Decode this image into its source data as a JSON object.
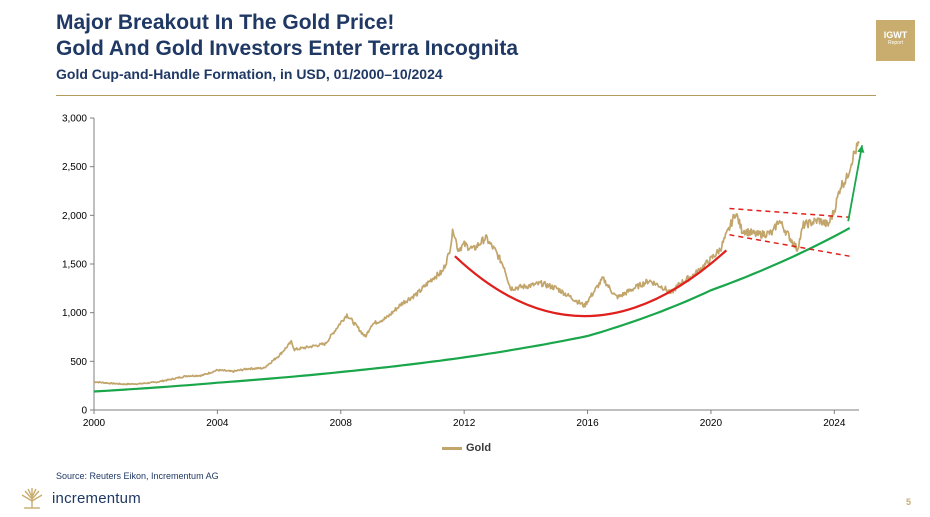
{
  "header": {
    "title_line1": "Major Breakout In The Gold Price!",
    "title_line2": "Gold And Gold Investors Enter Terra Incognita",
    "subtitle": "Gold Cup-and-Handle Formation, in USD, 01/2000–10/2024"
  },
  "badge": {
    "line1": "IGWT",
    "line2": "Report"
  },
  "footer": {
    "source": "Source: Reuters Eikon, Incrementum AG",
    "logo_text": "incrementum",
    "page_number": "5"
  },
  "colors": {
    "title": "#1f3864",
    "gold_series": "#c2a56b",
    "trend_line": "#1aa64b",
    "cup_arc": "#e0201c",
    "handle_channel": "#e0201c",
    "badge": "#c8ad6f"
  },
  "chart_data": {
    "type": "line",
    "xlim": [
      2000,
      2024.8
    ],
    "ylim": [
      0,
      3000
    ],
    "x_ticks": [
      "2000",
      "2004",
      "2008",
      "2012",
      "2016",
      "2020",
      "2024"
    ],
    "y_ticks": [
      "0",
      "500",
      "1,000",
      "1,500",
      "2,000",
      "2,500",
      "3,000"
    ],
    "legend_position": "bottom-center",
    "series": [
      {
        "name": "Gold",
        "x": [
          2000.0,
          2000.5,
          2001.0,
          2001.5,
          2002.0,
          2002.5,
          2003.0,
          2003.5,
          2004.0,
          2004.5,
          2005.0,
          2005.5,
          2006.0,
          2006.4,
          2006.5,
          2007.0,
          2007.5,
          2008.0,
          2008.2,
          2008.8,
          2009.0,
          2009.5,
          2010.0,
          2010.5,
          2011.0,
          2011.3,
          2011.5,
          2011.65,
          2011.8,
          2012.0,
          2012.3,
          2012.7,
          2012.9,
          2013.0,
          2013.3,
          2013.5,
          2014.0,
          2014.5,
          2015.0,
          2015.5,
          2015.9,
          2016.0,
          2016.5,
          2016.9,
          2017.0,
          2017.5,
          2018.0,
          2018.5,
          2018.7,
          2019.0,
          2019.5,
          2020.0,
          2020.3,
          2020.6,
          2020.8,
          2021.0,
          2021.5,
          2022.0,
          2022.2,
          2022.5,
          2022.8,
          2023.0,
          2023.5,
          2023.8,
          2024.0,
          2024.2,
          2024.4,
          2024.6,
          2024.8
        ],
        "values": [
          290,
          275,
          265,
          270,
          285,
          315,
          350,
          355,
          410,
          395,
          425,
          430,
          560,
          700,
          620,
          650,
          680,
          900,
          980,
          750,
          880,
          950,
          1100,
          1200,
          1360,
          1420,
          1600,
          1860,
          1650,
          1700,
          1650,
          1770,
          1680,
          1640,
          1470,
          1250,
          1270,
          1300,
          1250,
          1150,
          1070,
          1120,
          1350,
          1170,
          1160,
          1250,
          1330,
          1250,
          1200,
          1300,
          1400,
          1550,
          1650,
          1870,
          2030,
          1850,
          1800,
          1820,
          1950,
          1800,
          1650,
          1900,
          1950,
          1900,
          2050,
          2300,
          2380,
          2600,
          2740
        ]
      },
      {
        "name": "",
        "x": [
          2000,
          2004,
          2008,
          2012,
          2016,
          2020,
          2024.5
        ],
        "values": [
          190,
          280,
          390,
          540,
          760,
          1230,
          1870
        ]
      }
    ],
    "annotations": [
      {
        "type": "arc",
        "label": "",
        "x": [
          2011.7,
          2016.0,
          2020.5
        ],
        "values": [
          1580,
          965,
          1640
        ]
      },
      {
        "type": "channel-upper",
        "label": "",
        "x": [
          2020.6,
          2024.5
        ],
        "values": [
          2070,
          1980
        ]
      },
      {
        "type": "channel-lower",
        "label": "",
        "x": [
          2020.6,
          2024.5
        ],
        "values": [
          1800,
          1580
        ]
      },
      {
        "type": "arrow",
        "label": "",
        "x": [
          2024.45,
          2024.9
        ],
        "values": [
          1940,
          2720
        ]
      }
    ]
  }
}
